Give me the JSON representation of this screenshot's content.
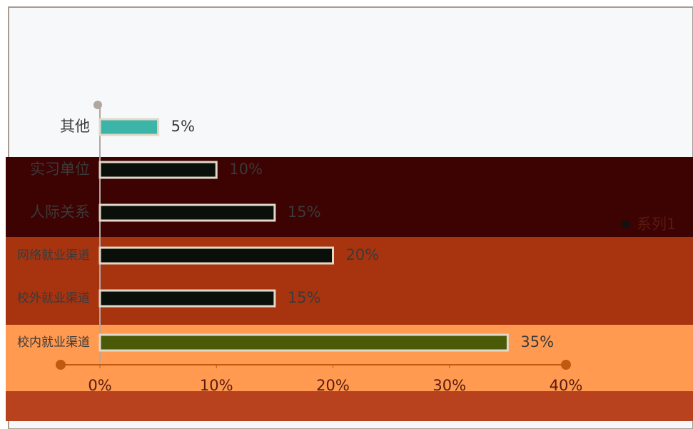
{
  "chart_data": {
    "type": "bar",
    "orientation": "horizontal",
    "categories": [
      "其他",
      "实习单位",
      "人际关系",
      "网络就业渠道",
      "校外就业渠道",
      "校内就业渠道"
    ],
    "series": [
      {
        "name": "系列1",
        "color": "#111111",
        "values": [
          5,
          10,
          15,
          20,
          15,
          35
        ],
        "value_labels": [
          "5%",
          "10%",
          "15%",
          "20%",
          "15%",
          "35%"
        ],
        "colors": [
          "#3cb5a8",
          "#0b0f0a",
          "#0b0f0a",
          "#0b0f0a",
          "#0b0f0a",
          "#4a5a08"
        ]
      }
    ],
    "xlim": [
      0,
      40
    ],
    "xticks": [
      {
        "value": 0,
        "label": "0%"
      },
      {
        "value": 10,
        "label": "10%"
      },
      {
        "value": 20,
        "label": "20%"
      },
      {
        "value": 30,
        "label": "30%"
      },
      {
        "value": 40,
        "label": "40%"
      }
    ],
    "legend": "right"
  }
}
